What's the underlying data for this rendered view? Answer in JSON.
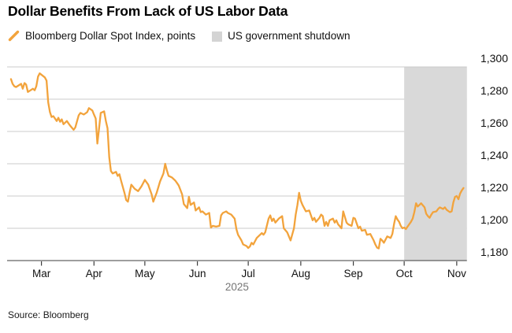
{
  "title": "Dollar Benefits From Lack of US Labor Data",
  "legend": {
    "series_label": "Bloomberg Dollar Spot Index, points",
    "band_label": "US government shutdown"
  },
  "source": "Source: Bloomberg",
  "colors": {
    "line": "#F2A33C",
    "band": "#D9D9D9",
    "legend_square": "#D4D4D4",
    "grid": "#CBCBCB",
    "axis": "#3C3C3C",
    "text": "#111111",
    "muted": "#767676"
  },
  "chart_data": {
    "type": "line",
    "title": "Dollar Benefits From Lack of US Labor Data",
    "xlabel": "2025",
    "ylabel": "points",
    "grid": true,
    "legend_position": "top",
    "ylim": [
      1180,
      1300
    ],
    "y_ticks": [
      {
        "value": 1300,
        "label": "1,300"
      },
      {
        "value": 1280,
        "label": "1,280"
      },
      {
        "value": 1260,
        "label": "1,260"
      },
      {
        "value": 1240,
        "label": "1,240"
      },
      {
        "value": 1220,
        "label": "1,220"
      },
      {
        "value": 1200,
        "label": "1,200"
      },
      {
        "value": 1180,
        "label": "1,180"
      }
    ],
    "x_ticks": [
      {
        "label": "Mar",
        "date": "2025-03-01"
      },
      {
        "label": "Apr",
        "date": "2025-04-01"
      },
      {
        "label": "May",
        "date": "2025-05-01"
      },
      {
        "label": "Jun",
        "date": "2025-06-01"
      },
      {
        "label": "Jul",
        "date": "2025-07-01"
      },
      {
        "label": "Aug",
        "date": "2025-08-01"
      },
      {
        "label": "Sep",
        "date": "2025-09-01"
      },
      {
        "label": "Oct",
        "date": "2025-10-01"
      },
      {
        "label": "Nov",
        "date": "2025-11-01"
      }
    ],
    "x_axis_year": "2025",
    "x_range": {
      "start": "2025-02-11",
      "end": "2025-11-07"
    },
    "band": {
      "name": "US government shutdown",
      "start": "2025-10-01",
      "end": "2025-11-07",
      "color": "#D9D9D9"
    },
    "series": [
      {
        "name": "Bloomberg Dollar Spot Index, points",
        "color": "#F2A33C",
        "points": [
          [
            "2025-02-11",
            1292.5
          ],
          [
            "2025-02-12",
            1289.5
          ],
          [
            "2025-02-13",
            1288
          ],
          [
            "2025-02-14",
            1287.5
          ],
          [
            "2025-02-17",
            1289.5
          ],
          [
            "2025-02-18",
            1286.5
          ],
          [
            "2025-02-19",
            1290
          ],
          [
            "2025-02-20",
            1289
          ],
          [
            "2025-02-21",
            1284.5
          ],
          [
            "2025-02-24",
            1286.5
          ],
          [
            "2025-02-25",
            1285.5
          ],
          [
            "2025-02-26",
            1288
          ],
          [
            "2025-02-27",
            1294
          ],
          [
            "2025-02-28",
            1296
          ],
          [
            "2025-03-03",
            1293.5
          ],
          [
            "2025-03-04",
            1291.5
          ],
          [
            "2025-03-05",
            1278
          ],
          [
            "2025-03-06",
            1272
          ],
          [
            "2025-03-07",
            1269
          ],
          [
            "2025-03-08",
            1269.5
          ],
          [
            "2025-03-10",
            1266.5
          ],
          [
            "2025-03-11",
            1268.5
          ],
          [
            "2025-03-12",
            1266
          ],
          [
            "2025-03-13",
            1267.5
          ],
          [
            "2025-03-14",
            1264.5
          ],
          [
            "2025-03-16",
            1266.5
          ],
          [
            "2025-03-17",
            1265
          ],
          [
            "2025-03-18",
            1263.5
          ],
          [
            "2025-03-20",
            1261
          ],
          [
            "2025-03-21",
            1262.5
          ],
          [
            "2025-03-23",
            1270
          ],
          [
            "2025-03-24",
            1271.5
          ],
          [
            "2025-03-26",
            1270.5
          ],
          [
            "2025-03-28",
            1272
          ],
          [
            "2025-03-29",
            1274.5
          ],
          [
            "2025-03-31",
            1273
          ],
          [
            "2025-04-01",
            1270.5
          ],
          [
            "2025-04-02",
            1268
          ],
          [
            "2025-04-03",
            1252.5
          ],
          [
            "2025-04-04",
            1262
          ],
          [
            "2025-04-05",
            1271.5
          ],
          [
            "2025-04-07",
            1272.5
          ],
          [
            "2025-04-08",
            1266.5
          ],
          [
            "2025-04-09",
            1262
          ],
          [
            "2025-04-10",
            1244
          ],
          [
            "2025-04-11",
            1235.5
          ],
          [
            "2025-04-12",
            1234
          ],
          [
            "2025-04-14",
            1235
          ],
          [
            "2025-04-15",
            1232.5
          ],
          [
            "2025-04-16",
            1233.5
          ],
          [
            "2025-04-17",
            1229.5
          ],
          [
            "2025-04-19",
            1222
          ],
          [
            "2025-04-20",
            1217.5
          ],
          [
            "2025-04-21",
            1216.5
          ],
          [
            "2025-04-22",
            1222
          ],
          [
            "2025-04-23",
            1227
          ],
          [
            "2025-04-25",
            1224.5
          ],
          [
            "2025-04-27",
            1223
          ],
          [
            "2025-04-29",
            1226
          ],
          [
            "2025-05-01",
            1230
          ],
          [
            "2025-05-03",
            1227
          ],
          [
            "2025-05-05",
            1221
          ],
          [
            "2025-05-06",
            1216.5
          ],
          [
            "2025-05-08",
            1222
          ],
          [
            "2025-05-10",
            1229
          ],
          [
            "2025-05-12",
            1234
          ],
          [
            "2025-05-13",
            1240
          ],
          [
            "2025-05-14",
            1236
          ],
          [
            "2025-05-15",
            1232.5
          ],
          [
            "2025-05-16",
            1232
          ],
          [
            "2025-05-17",
            1231.5
          ],
          [
            "2025-05-19",
            1229.5
          ],
          [
            "2025-05-20",
            1228
          ],
          [
            "2025-05-21",
            1226.5
          ],
          [
            "2025-05-23",
            1221
          ],
          [
            "2025-05-24",
            1215
          ],
          [
            "2025-05-26",
            1212.5
          ],
          [
            "2025-05-27",
            1219.5
          ],
          [
            "2025-05-28",
            1214.5
          ],
          [
            "2025-05-30",
            1216
          ],
          [
            "2025-05-31",
            1211
          ],
          [
            "2025-06-02",
            1213
          ],
          [
            "2025-06-03",
            1210
          ],
          [
            "2025-06-04",
            1210.5
          ],
          [
            "2025-06-06",
            1208.5
          ],
          [
            "2025-06-08",
            1209.5
          ],
          [
            "2025-06-09",
            1200.5
          ],
          [
            "2025-06-10",
            1201.5
          ],
          [
            "2025-06-12",
            1201
          ],
          [
            "2025-06-14",
            1201.5
          ],
          [
            "2025-06-15",
            1208
          ],
          [
            "2025-06-16",
            1209.5
          ],
          [
            "2025-06-18",
            1210.5
          ],
          [
            "2025-06-19",
            1209.5
          ],
          [
            "2025-06-21",
            1208.5
          ],
          [
            "2025-06-23",
            1206
          ],
          [
            "2025-06-24",
            1199.5
          ],
          [
            "2025-06-25",
            1196
          ],
          [
            "2025-06-27",
            1192.5
          ],
          [
            "2025-06-28",
            1190
          ],
          [
            "2025-06-30",
            1189
          ],
          [
            "2025-07-01",
            1187.8
          ],
          [
            "2025-07-02",
            1188.8
          ],
          [
            "2025-07-03",
            1191
          ],
          [
            "2025-07-04",
            1190
          ],
          [
            "2025-07-06",
            1194
          ],
          [
            "2025-07-08",
            1196
          ],
          [
            "2025-07-09",
            1197
          ],
          [
            "2025-07-10",
            1196
          ],
          [
            "2025-07-11",
            1197.5
          ],
          [
            "2025-07-13",
            1206
          ],
          [
            "2025-07-14",
            1208
          ],
          [
            "2025-07-15",
            1204.5
          ],
          [
            "2025-07-16",
            1206
          ],
          [
            "2025-07-17",
            1203.5
          ],
          [
            "2025-07-19",
            1206
          ],
          [
            "2025-07-21",
            1207.5
          ],
          [
            "2025-07-22",
            1200
          ],
          [
            "2025-07-24",
            1197.5
          ],
          [
            "2025-07-26",
            1192.5
          ],
          [
            "2025-07-28",
            1200
          ],
          [
            "2025-07-29",
            1208.5
          ],
          [
            "2025-07-30",
            1214.5
          ],
          [
            "2025-07-31",
            1222
          ],
          [
            "2025-08-01",
            1217
          ],
          [
            "2025-08-02",
            1214.5
          ],
          [
            "2025-08-04",
            1210.5
          ],
          [
            "2025-08-06",
            1211
          ],
          [
            "2025-08-08",
            1205
          ],
          [
            "2025-08-09",
            1206.5
          ],
          [
            "2025-08-10",
            1204
          ],
          [
            "2025-08-12",
            1206.5
          ],
          [
            "2025-08-13",
            1208.5
          ],
          [
            "2025-08-14",
            1207.5
          ],
          [
            "2025-08-15",
            1201.5
          ],
          [
            "2025-08-16",
            1204
          ],
          [
            "2025-08-17",
            1201.5
          ],
          [
            "2025-08-18",
            1205
          ],
          [
            "2025-08-20",
            1206
          ],
          [
            "2025-08-21",
            1203.5
          ],
          [
            "2025-08-22",
            1205
          ],
          [
            "2025-08-23",
            1202.5
          ],
          [
            "2025-08-25",
            1200
          ],
          [
            "2025-08-26",
            1210.5
          ],
          [
            "2025-08-28",
            1203.5
          ],
          [
            "2025-08-29",
            1202.5
          ],
          [
            "2025-08-31",
            1201.5
          ],
          [
            "2025-09-01",
            1206.5
          ],
          [
            "2025-09-02",
            1206
          ],
          [
            "2025-09-04",
            1200
          ],
          [
            "2025-09-05",
            1201
          ],
          [
            "2025-09-06",
            1198.5
          ],
          [
            "2025-09-08",
            1199
          ],
          [
            "2025-09-09",
            1196
          ],
          [
            "2025-09-11",
            1196.5
          ],
          [
            "2025-09-13",
            1192.5
          ],
          [
            "2025-09-14",
            1190
          ],
          [
            "2025-09-15",
            1188
          ],
          [
            "2025-09-16",
            1187.5
          ],
          [
            "2025-09-17",
            1193.5
          ],
          [
            "2025-09-18",
            1192.5
          ],
          [
            "2025-09-19",
            1191
          ],
          [
            "2025-09-21",
            1195
          ],
          [
            "2025-09-23",
            1194
          ],
          [
            "2025-09-24",
            1196.5
          ],
          [
            "2025-09-25",
            1202.5
          ],
          [
            "2025-09-26",
            1207.5
          ],
          [
            "2025-09-27",
            1205.5
          ],
          [
            "2025-09-28",
            1204
          ],
          [
            "2025-09-29",
            1201.5
          ],
          [
            "2025-09-30",
            1200
          ],
          [
            "2025-10-01",
            1200.5
          ],
          [
            "2025-10-02",
            1199.5
          ],
          [
            "2025-10-03",
            1201
          ],
          [
            "2025-10-05",
            1204
          ],
          [
            "2025-10-06",
            1206
          ],
          [
            "2025-10-07",
            1210
          ],
          [
            "2025-10-08",
            1215.5
          ],
          [
            "2025-10-09",
            1213.5
          ],
          [
            "2025-10-10",
            1214.5
          ],
          [
            "2025-10-11",
            1215.5
          ],
          [
            "2025-10-13",
            1213
          ],
          [
            "2025-10-14",
            1209
          ],
          [
            "2025-10-15",
            1207.5
          ],
          [
            "2025-10-16",
            1206.5
          ],
          [
            "2025-10-17",
            1208.5
          ],
          [
            "2025-10-18",
            1210
          ],
          [
            "2025-10-20",
            1210.5
          ],
          [
            "2025-10-21",
            1212
          ],
          [
            "2025-10-22",
            1213
          ],
          [
            "2025-10-24",
            1212
          ],
          [
            "2025-10-25",
            1213
          ],
          [
            "2025-10-26",
            1211.5
          ],
          [
            "2025-10-28",
            1210
          ],
          [
            "2025-10-29",
            1210.5
          ],
          [
            "2025-10-30",
            1216
          ],
          [
            "2025-10-31",
            1219.5
          ],
          [
            "2025-11-01",
            1220
          ],
          [
            "2025-11-02",
            1218
          ],
          [
            "2025-11-03",
            1221.5
          ],
          [
            "2025-11-04",
            1223.5
          ],
          [
            "2025-11-05",
            1225
          ]
        ]
      }
    ]
  }
}
